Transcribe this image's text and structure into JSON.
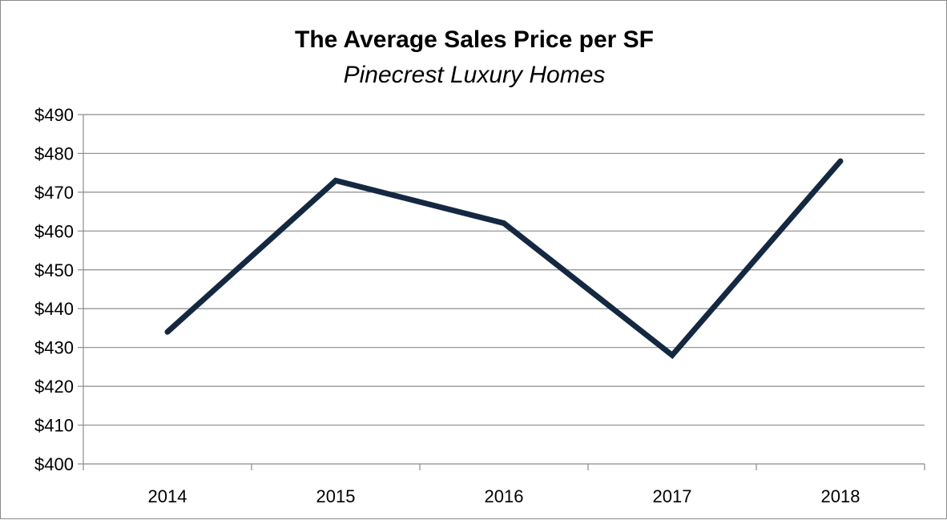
{
  "chart_data": {
    "type": "line",
    "title": "The Average Sales Price per SF",
    "subtitle": "Pinecrest Luxury Homes",
    "xlabel": "",
    "ylabel": "",
    "categories": [
      "2014",
      "2015",
      "2016",
      "2017",
      "2018"
    ],
    "series": [
      {
        "name": "",
        "values": [
          434,
          473,
          462,
          428,
          478
        ],
        "color": "#142841"
      }
    ],
    "ylim": [
      400,
      490
    ],
    "yticks": [
      400,
      410,
      420,
      430,
      440,
      450,
      460,
      470,
      480,
      490
    ],
    "ytick_labels": [
      "$400",
      "$410",
      "$420",
      "$430",
      "$440",
      "$450",
      "$460",
      "$470",
      "$480",
      "$490"
    ],
    "grid": true,
    "legend": "none"
  }
}
